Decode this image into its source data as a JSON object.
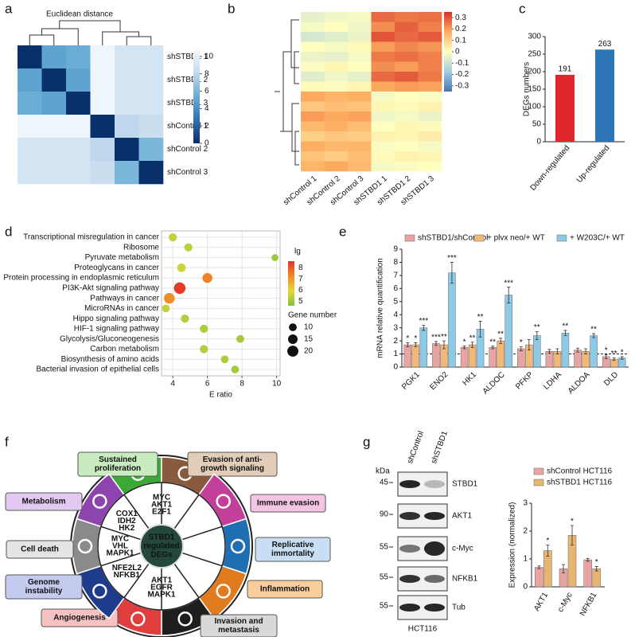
{
  "panel_labels": [
    "a",
    "b",
    "c",
    "d",
    "e",
    "f",
    "g"
  ],
  "chart_data": [
    {
      "type": "heatmap",
      "title": "Euclidean distance",
      "rows": [
        "shSTBD1 1",
        "shSTBD1 2",
        "shSTBD1 3",
        "shControl 1",
        "shControl 2",
        "shControl 3"
      ],
      "values": [
        [
          0,
          5,
          5.5,
          10.5,
          9,
          9
        ],
        [
          5,
          0,
          5,
          10.5,
          9,
          9
        ],
        [
          5.5,
          5,
          0,
          10.5,
          9,
          9
        ],
        [
          10.5,
          10.5,
          10.5,
          0,
          8,
          8.5
        ],
        [
          9,
          9,
          9,
          8,
          0,
          6
        ],
        [
          9,
          9,
          9,
          8.5,
          6,
          0
        ]
      ],
      "colormap": [
        "#08306b",
        "#2f73b5",
        "#6aaed6",
        "#c6dbef",
        "#f7fbff"
      ],
      "clim": [
        0,
        11
      ],
      "colorbar_ticks": [
        0,
        2,
        4,
        6,
        8,
        10
      ]
    },
    {
      "type": "heatmap",
      "columns": [
        "shControl 1",
        "shControl 2",
        "shControl 3",
        "shSTBD1 1",
        "shSTBD1 2",
        "shSTBD1 3"
      ],
      "values": [
        [
          -0.05,
          -0.03,
          -0.02,
          0.27,
          0.25,
          0.26
        ],
        [
          -0.02,
          0.0,
          -0.03,
          0.22,
          0.28,
          0.24
        ],
        [
          -0.08,
          -0.06,
          -0.04,
          0.3,
          0.27,
          0.29
        ],
        [
          0.0,
          -0.02,
          0.01,
          0.2,
          0.23,
          0.21
        ],
        [
          -0.04,
          -0.05,
          -0.02,
          0.25,
          0.26,
          0.24
        ],
        [
          -0.01,
          0.02,
          0.0,
          0.22,
          0.2,
          0.24
        ],
        [
          -0.06,
          -0.03,
          -0.05,
          0.27,
          0.29,
          0.25
        ],
        [
          0.01,
          -0.01,
          0.02,
          0.18,
          0.2,
          0.19
        ],
        [
          0.18,
          0.16,
          0.17,
          -0.02,
          0.0,
          -0.01
        ],
        [
          0.12,
          0.14,
          0.13,
          0.02,
          0.01,
          0.03
        ],
        [
          0.2,
          0.18,
          0.19,
          -0.03,
          -0.02,
          -0.04
        ],
        [
          0.15,
          0.17,
          0.14,
          0.0,
          0.02,
          0.01
        ],
        [
          0.1,
          0.12,
          0.11,
          0.03,
          0.02,
          0.04
        ],
        [
          0.17,
          0.15,
          0.16,
          -0.01,
          0.0,
          -0.02
        ],
        [
          0.13,
          0.11,
          0.14,
          0.01,
          0.03,
          0.02
        ],
        [
          0.16,
          0.18,
          0.15,
          -0.02,
          -0.01,
          0.0
        ]
      ],
      "colormap": [
        "#4575b4",
        "#a6cbe3",
        "#ffffbf",
        "#fdae61",
        "#d73027"
      ],
      "clim": [
        -0.35,
        0.35
      ],
      "colorbar_ticks": [
        0.3,
        0.2,
        0.1,
        0,
        -0.1,
        -0.2,
        -0.3
      ]
    },
    {
      "type": "bar",
      "categories": [
        "Down-regulated",
        "Up-regulated"
      ],
      "values": [
        191,
        263
      ],
      "colors": [
        "#e0262b",
        "#2c74b5"
      ],
      "y_label": "DEGs numbers",
      "ylim": [
        0,
        300
      ],
      "yticks": [
        0,
        50,
        100,
        150,
        200,
        250,
        300
      ]
    },
    {
      "type": "bubble",
      "categories": [
        "Transcriptional misregulation in cancer",
        "Ribosome",
        "Pyruvate metabolism",
        "Proteoglycans in cancer",
        "Protein processing in endoplasmic reticulum",
        "PI3K-Akt signaling pathway",
        "Pathways in cancer",
        "MicroRNAs in cancer",
        "Hippo signaling pathway",
        "HIF-1 signaling pathway",
        "Glycolysis/Gluconeogenesis",
        "Carbon metabolism",
        "Biosynthesis of amino acids",
        "Bacterial invasion of epithelial cells"
      ],
      "x": [
        4.0,
        4.9,
        9.9,
        4.5,
        6.0,
        4.4,
        3.8,
        3.6,
        4.7,
        5.8,
        7.9,
        5.8,
        7.0,
        7.6
      ],
      "lg": [
        5.5,
        5.4,
        5.0,
        5.6,
        7.4,
        8.5,
        7.2,
        5.5,
        5.3,
        5.2,
        5.1,
        5.3,
        5.2,
        5.1
      ],
      "size": [
        11,
        11,
        8,
        12,
        16,
        22,
        19,
        10,
        11,
        11,
        10,
        11,
        10,
        10
      ],
      "x_label": "E ratio",
      "xlim": [
        3.35,
        10.2
      ],
      "xticks": [
        4,
        6,
        8,
        10
      ],
      "grid": true,
      "color_label": "lg",
      "colormap": [
        "#7dc242",
        "#e6d83a",
        "#f08a28",
        "#e3342a"
      ],
      "color_lim": [
        4.6,
        8.6
      ],
      "color_ticks": [
        8,
        7,
        6,
        5
      ],
      "size_label": "Gene number",
      "size_ticks": [
        10,
        15,
        20
      ]
    },
    {
      "type": "grouped-bar",
      "categories": [
        "PGK1",
        "ENO2",
        "HK1",
        "ALDOC",
        "PFKP",
        "LDHA",
        "ALDOA",
        "DLD"
      ],
      "y_label": "mRNA relative quantification",
      "ylim": [
        0,
        9
      ],
      "yticks": [
        0,
        1,
        2,
        3,
        4,
        5,
        6,
        7,
        8,
        9
      ],
      "reference_line": 1,
      "series": [
        {
          "name": "shSTBD1/shControl",
          "color": "#e8a3a3",
          "values": [
            1.7,
            1.8,
            1.5,
            1.5,
            1.4,
            1.2,
            1.3,
            0.8
          ],
          "errors": [
            0.15,
            0.15,
            0.1,
            0.1,
            0.15,
            0.15,
            0.15,
            0.15
          ],
          "stars": [
            "*",
            "***",
            "*",
            "**",
            "*",
            null,
            null,
            "*"
          ]
        },
        {
          "name": "+ plvx neo/+ WT",
          "color": "#f2b877",
          "values": [
            1.7,
            1.7,
            1.7,
            2.0,
            1.7,
            1.2,
            1.2,
            0.6
          ],
          "errors": [
            0.15,
            0.3,
            0.2,
            0.2,
            0.4,
            0.2,
            0.2,
            0.1
          ],
          "stars": [
            "*",
            "**",
            "**",
            "**",
            null,
            null,
            null,
            "**"
          ]
        },
        {
          "name": "+ W203C/+ WT",
          "color": "#8ecae6",
          "values": [
            3.0,
            7.2,
            2.9,
            5.5,
            2.4,
            2.6,
            2.4,
            0.7
          ],
          "errors": [
            0.2,
            0.8,
            0.6,
            0.6,
            0.3,
            0.2,
            0.15,
            0.1
          ],
          "stars": [
            "***",
            "***",
            "**",
            "***",
            "**",
            "**",
            "**",
            "*"
          ]
        }
      ]
    },
    {
      "type": "grouped-bar",
      "categories": [
        "AKT1",
        "c-Myc",
        "NFKB1"
      ],
      "y_label": "Expression (normalized)",
      "ylim": [
        0,
        3
      ],
      "yticks": [
        0,
        1,
        2,
        3
      ],
      "series": [
        {
          "name": "shControl HCT116",
          "color": "#e8a3a3",
          "values": [
            0.7,
            0.65,
            0.97
          ],
          "errors": [
            0.05,
            0.15,
            0.05
          ],
          "stars": [
            null,
            null,
            null
          ]
        },
        {
          "name": "shSTBD1 HCT116",
          "color": "#e8b570",
          "values": [
            1.3,
            1.85,
            0.65
          ],
          "errors": [
            0.2,
            0.35,
            0.08
          ],
          "stars": [
            "*",
            "*",
            "*"
          ]
        }
      ]
    }
  ],
  "diagram": {
    "center": [
      "STBD1",
      "regulated",
      "DEGs"
    ],
    "hallmarks": [
      {
        "label": [
          "Sustained",
          "proliferation"
        ]
      },
      {
        "label": [
          "Evasion of anti-",
          "growth signaling"
        ]
      },
      {
        "label": [
          "Immune evasion"
        ]
      },
      {
        "label": [
          "Replicative",
          "immortality"
        ]
      },
      {
        "label": [
          "Inflammation"
        ]
      },
      {
        "label": [
          "Invasion and",
          "metastasis"
        ]
      },
      {
        "label": [
          "Angiogenesis"
        ]
      },
      {
        "label": [
          "Genome",
          "instability"
        ]
      },
      {
        "label": [
          "Cell death"
        ]
      },
      {
        "label": [
          "Metabolism"
        ]
      }
    ],
    "gene_groups": [
      [
        "MYC",
        "AKT1",
        "E2F1"
      ],
      [
        "COX1",
        "IDH2",
        "HK2"
      ],
      [
        "MYC",
        "VHL",
        "MAPK1"
      ],
      [
        "NFE2L2",
        "NFKB1"
      ],
      [
        "AKT1",
        "EGFR",
        "MAPK1"
      ]
    ]
  },
  "blot": {
    "unit": "kDa",
    "lanes": [
      "shControl",
      "shSTBD1"
    ],
    "rows": [
      {
        "marker": "45",
        "protein": "STBD1"
      },
      {
        "marker": "90",
        "protein": "AKT1"
      },
      {
        "marker": "55",
        "protein": "c-Myc"
      },
      {
        "marker": "55",
        "protein": "NFKB1"
      },
      {
        "marker": "55",
        "protein": "Tub"
      }
    ],
    "cell_line": "HCT116"
  }
}
